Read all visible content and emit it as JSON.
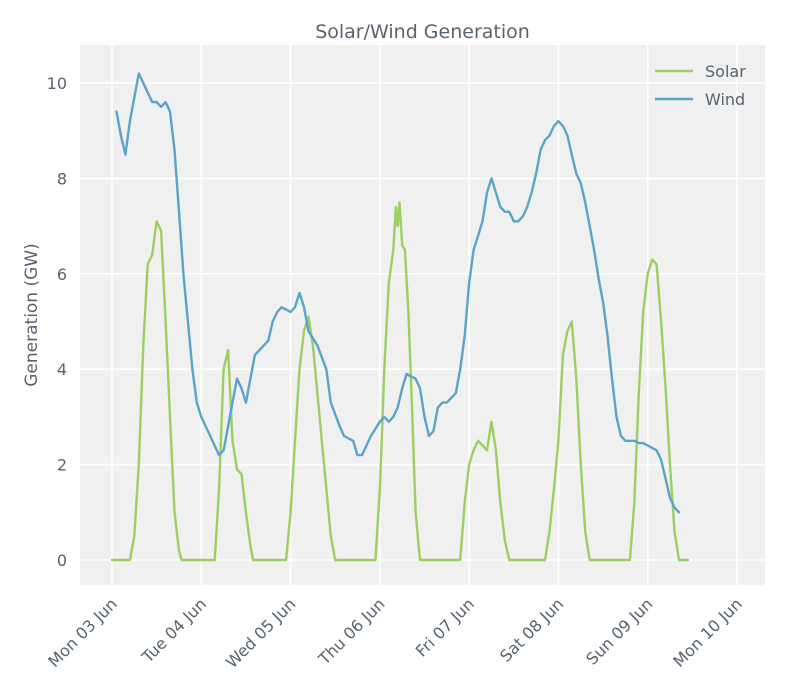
{
  "chart_data": {
    "type": "line",
    "title": "Solar/Wind Generation",
    "xlabel": "",
    "ylabel": "Generation (GW)",
    "x_unit": "day",
    "xlim": [
      3.0,
      10.0
    ],
    "ylim": [
      -0.5,
      10.8
    ],
    "xticks": [
      {
        "x": 3,
        "label": "Mon 03 Jun"
      },
      {
        "x": 4,
        "label": "Tue 04 Jun"
      },
      {
        "x": 5,
        "label": "Wed 05 Jun"
      },
      {
        "x": 6,
        "label": "Thu 06 Jun"
      },
      {
        "x": 7,
        "label": "Fri 07 Jun"
      },
      {
        "x": 8,
        "label": "Sat 08 Jun"
      },
      {
        "x": 9,
        "label": "Sun 09 Jun"
      },
      {
        "x": 10,
        "label": "Mon 10 Jun"
      }
    ],
    "yticks": [
      0,
      2,
      4,
      6,
      8,
      10
    ],
    "grid": true,
    "legend_position": "top-right",
    "series": [
      {
        "name": "Solar",
        "color": "#9ccf62",
        "points": [
          [
            3.0,
            0
          ],
          [
            3.2,
            0
          ],
          [
            3.25,
            0.5
          ],
          [
            3.3,
            2.0
          ],
          [
            3.35,
            4.5
          ],
          [
            3.4,
            6.2
          ],
          [
            3.45,
            6.4
          ],
          [
            3.5,
            7.1
          ],
          [
            3.55,
            6.9
          ],
          [
            3.6,
            5.0
          ],
          [
            3.65,
            3.0
          ],
          [
            3.7,
            1.0
          ],
          [
            3.75,
            0.2
          ],
          [
            3.78,
            0
          ],
          [
            4.0,
            0
          ],
          [
            4.15,
            0
          ],
          [
            4.2,
            1.5
          ],
          [
            4.25,
            4.0
          ],
          [
            4.3,
            4.4
          ],
          [
            4.35,
            2.5
          ],
          [
            4.4,
            1.9
          ],
          [
            4.45,
            1.8
          ],
          [
            4.5,
            1.0
          ],
          [
            4.55,
            0.3
          ],
          [
            4.58,
            0
          ],
          [
            4.8,
            0
          ],
          [
            4.95,
            0
          ],
          [
            5.0,
            1.0
          ],
          [
            5.05,
            2.5
          ],
          [
            5.1,
            4.0
          ],
          [
            5.15,
            4.8
          ],
          [
            5.2,
            5.1
          ],
          [
            5.25,
            4.5
          ],
          [
            5.3,
            3.5
          ],
          [
            5.35,
            2.5
          ],
          [
            5.4,
            1.5
          ],
          [
            5.45,
            0.5
          ],
          [
            5.5,
            0
          ],
          [
            5.7,
            0
          ],
          [
            5.95,
            0
          ],
          [
            6.0,
            1.5
          ],
          [
            6.05,
            4.0
          ],
          [
            6.1,
            5.8
          ],
          [
            6.15,
            6.5
          ],
          [
            6.18,
            7.4
          ],
          [
            6.2,
            7.0
          ],
          [
            6.22,
            7.5
          ],
          [
            6.25,
            6.6
          ],
          [
            6.28,
            6.5
          ],
          [
            6.32,
            5.2
          ],
          [
            6.36,
            3.2
          ],
          [
            6.4,
            1.0
          ],
          [
            6.45,
            0
          ],
          [
            6.6,
            0
          ],
          [
            6.9,
            0
          ],
          [
            6.95,
            1.2
          ],
          [
            7.0,
            2.0
          ],
          [
            7.05,
            2.3
          ],
          [
            7.1,
            2.5
          ],
          [
            7.15,
            2.4
          ],
          [
            7.2,
            2.3
          ],
          [
            7.25,
            2.9
          ],
          [
            7.3,
            2.3
          ],
          [
            7.35,
            1.2
          ],
          [
            7.4,
            0.4
          ],
          [
            7.45,
            0
          ],
          [
            7.6,
            0
          ],
          [
            7.85,
            0
          ],
          [
            7.9,
            0.6
          ],
          [
            7.95,
            1.5
          ],
          [
            8.0,
            2.5
          ],
          [
            8.05,
            4.3
          ],
          [
            8.1,
            4.8
          ],
          [
            8.15,
            5.0
          ],
          [
            8.2,
            3.8
          ],
          [
            8.25,
            2.0
          ],
          [
            8.3,
            0.6
          ],
          [
            8.35,
            0
          ],
          [
            8.5,
            0
          ],
          [
            8.8,
            0
          ],
          [
            8.85,
            1.2
          ],
          [
            8.9,
            3.5
          ],
          [
            8.95,
            5.2
          ],
          [
            9.0,
            6.0
          ],
          [
            9.05,
            6.3
          ],
          [
            9.1,
            6.2
          ],
          [
            9.15,
            5.0
          ],
          [
            9.2,
            3.6
          ],
          [
            9.25,
            2.0
          ],
          [
            9.3,
            0.6
          ],
          [
            9.35,
            0
          ],
          [
            9.45,
            0
          ]
        ]
      },
      {
        "name": "Wind",
        "color": "#5ba3c9",
        "points": [
          [
            3.05,
            9.4
          ],
          [
            3.1,
            8.9
          ],
          [
            3.15,
            8.5
          ],
          [
            3.2,
            9.2
          ],
          [
            3.3,
            10.2
          ],
          [
            3.35,
            10.0
          ],
          [
            3.45,
            9.6
          ],
          [
            3.5,
            9.6
          ],
          [
            3.55,
            9.5
          ],
          [
            3.6,
            9.6
          ],
          [
            3.65,
            9.4
          ],
          [
            3.7,
            8.6
          ],
          [
            3.75,
            7.3
          ],
          [
            3.8,
            6.0
          ],
          [
            3.85,
            5.0
          ],
          [
            3.9,
            4.0
          ],
          [
            3.95,
            3.3
          ],
          [
            4.0,
            3.0
          ],
          [
            4.1,
            2.6
          ],
          [
            4.2,
            2.2
          ],
          [
            4.25,
            2.3
          ],
          [
            4.3,
            2.8
          ],
          [
            4.35,
            3.3
          ],
          [
            4.4,
            3.8
          ],
          [
            4.45,
            3.6
          ],
          [
            4.5,
            3.3
          ],
          [
            4.55,
            3.8
          ],
          [
            4.6,
            4.3
          ],
          [
            4.7,
            4.5
          ],
          [
            4.75,
            4.6
          ],
          [
            4.8,
            5.0
          ],
          [
            4.85,
            5.2
          ],
          [
            4.9,
            5.3
          ],
          [
            5.0,
            5.2
          ],
          [
            5.05,
            5.3
          ],
          [
            5.1,
            5.6
          ],
          [
            5.15,
            5.3
          ],
          [
            5.2,
            4.8
          ],
          [
            5.3,
            4.5
          ],
          [
            5.4,
            4.0
          ],
          [
            5.45,
            3.3
          ],
          [
            5.55,
            2.8
          ],
          [
            5.6,
            2.6
          ],
          [
            5.7,
            2.5
          ],
          [
            5.75,
            2.2
          ],
          [
            5.8,
            2.2
          ],
          [
            5.9,
            2.6
          ],
          [
            6.0,
            2.9
          ],
          [
            6.05,
            3.0
          ],
          [
            6.1,
            2.9
          ],
          [
            6.15,
            3.0
          ],
          [
            6.2,
            3.2
          ],
          [
            6.25,
            3.6
          ],
          [
            6.3,
            3.9
          ],
          [
            6.4,
            3.8
          ],
          [
            6.45,
            3.6
          ],
          [
            6.5,
            3.0
          ],
          [
            6.55,
            2.6
          ],
          [
            6.6,
            2.7
          ],
          [
            6.65,
            3.2
          ],
          [
            6.7,
            3.3
          ],
          [
            6.75,
            3.3
          ],
          [
            6.85,
            3.5
          ],
          [
            6.9,
            4.0
          ],
          [
            6.95,
            4.7
          ],
          [
            7.0,
            5.8
          ],
          [
            7.05,
            6.5
          ],
          [
            7.1,
            6.8
          ],
          [
            7.15,
            7.1
          ],
          [
            7.2,
            7.7
          ],
          [
            7.25,
            8.0
          ],
          [
            7.3,
            7.7
          ],
          [
            7.35,
            7.4
          ],
          [
            7.4,
            7.3
          ],
          [
            7.45,
            7.3
          ],
          [
            7.5,
            7.1
          ],
          [
            7.55,
            7.1
          ],
          [
            7.6,
            7.2
          ],
          [
            7.65,
            7.4
          ],
          [
            7.7,
            7.7
          ],
          [
            7.75,
            8.1
          ],
          [
            7.8,
            8.6
          ],
          [
            7.85,
            8.8
          ],
          [
            7.9,
            8.9
          ],
          [
            7.95,
            9.1
          ],
          [
            8.0,
            9.2
          ],
          [
            8.05,
            9.1
          ],
          [
            8.1,
            8.9
          ],
          [
            8.15,
            8.5
          ],
          [
            8.2,
            8.1
          ],
          [
            8.25,
            7.9
          ],
          [
            8.3,
            7.5
          ],
          [
            8.35,
            7.0
          ],
          [
            8.4,
            6.5
          ],
          [
            8.45,
            5.9
          ],
          [
            8.5,
            5.4
          ],
          [
            8.55,
            4.7
          ],
          [
            8.6,
            3.8
          ],
          [
            8.65,
            3.0
          ],
          [
            8.7,
            2.6
          ],
          [
            8.75,
            2.5
          ],
          [
            8.8,
            2.5
          ],
          [
            8.85,
            2.5
          ],
          [
            8.9,
            2.45
          ],
          [
            8.95,
            2.45
          ],
          [
            9.0,
            2.4
          ],
          [
            9.1,
            2.3
          ],
          [
            9.15,
            2.1
          ],
          [
            9.2,
            1.7
          ],
          [
            9.25,
            1.3
          ],
          [
            9.3,
            1.1
          ],
          [
            9.35,
            1.0
          ]
        ]
      }
    ]
  }
}
